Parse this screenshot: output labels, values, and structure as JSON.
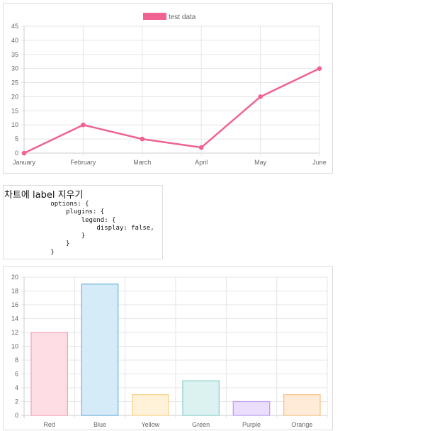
{
  "line_legend_label": "test data",
  "note": {
    "title": "차트에 label 지우기",
    "code": "        options: {\n            plugins: {\n                legend: {\n                    display: false,\n                }\n            }\n        }"
  },
  "colors": {
    "line": "#f06292",
    "bar_fills": [
      "#ffdde4",
      "#d6ebf8",
      "#fff2d9",
      "#dbf2f1",
      "#ebdefc",
      "#ffebd8"
    ],
    "bar_borders": [
      "#f4a6b5",
      "#74b6de",
      "#f9d48e",
      "#8fd3cf",
      "#bda2f1",
      "#f6c48a"
    ]
  },
  "chart_data": [
    {
      "type": "line",
      "categories": [
        "January",
        "February",
        "March",
        "April",
        "May",
        "June"
      ],
      "series": [
        {
          "name": "test data",
          "values": [
            0,
            10,
            5,
            2,
            20,
            30
          ]
        }
      ],
      "ylim": [
        0,
        45
      ],
      "yticks": [
        0,
        5,
        10,
        15,
        20,
        25,
        30,
        35,
        40,
        45
      ],
      "legend": "top-center",
      "grid": true
    },
    {
      "type": "bar",
      "categories": [
        "Red",
        "Blue",
        "Yellow",
        "Green",
        "Purple",
        "Orange"
      ],
      "values": [
        12,
        19,
        3,
        5,
        2,
        3
      ],
      "ylim": [
        0,
        20
      ],
      "yticks": [
        0,
        2,
        4,
        6,
        8,
        10,
        12,
        14,
        16,
        18,
        20
      ],
      "legend": "none",
      "grid": true
    }
  ]
}
